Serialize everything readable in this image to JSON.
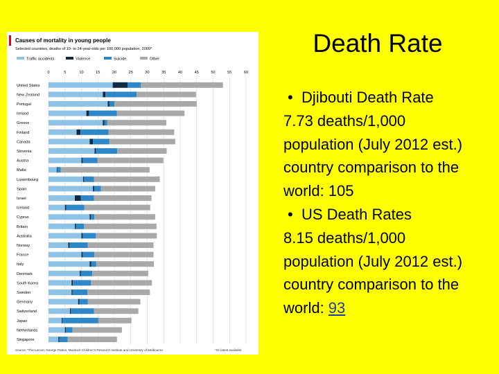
{
  "slide": {
    "title": "Death Rate",
    "djibouti_heading": "Djibouti Death Rate",
    "djibouti_rate": "7.73 deaths/1,000",
    "djibouti_population": "population (July 2012 est.)",
    "djibouti_comparison": "country comparison to the",
    "djibouti_rank_prefix": "world: ",
    "djibouti_rank": "105",
    "us_heading": "US Death Rates",
    "us_rate": "8.15 deaths/1,000",
    "us_population": "population (July 2012 est.)",
    "us_comparison": "country comparison to the",
    "us_rank_prefix": "world: ",
    "us_rank": "93",
    "bullet": "•",
    "link_color": "#1f3fa0"
  },
  "chart_data": {
    "type": "bar",
    "orientation": "horizontal",
    "stacked": true,
    "title": "Causes of mortality in young people",
    "subtitle": "Selected countries, deaths of 10- to 24-year-olds per 100,000 population, 2009*",
    "source": "Source: \"The Lancet, George Patton, Murdoch Children's Research Institute and University of Melbourne",
    "footnote": "*Or latest available",
    "xlim": [
      0,
      60
    ],
    "xticks": [
      0,
      5,
      10,
      15,
      20,
      25,
      30,
      35,
      40,
      45,
      50,
      55,
      60
    ],
    "grid": true,
    "legend_position": "top",
    "categories": [
      "United States",
      "New Zealand",
      "Portugal",
      "Ireland",
      "Greece",
      "Finland",
      "Canada",
      "Slovenia",
      "Austria",
      "Malta",
      "Luxembourg",
      "Spain",
      "Israel",
      "Iceland",
      "Cyprus",
      "Britain",
      "Australia",
      "Norway",
      "France",
      "Italy",
      "Denmark",
      "South Korea",
      "Sweden",
      "Germany",
      "Switzerland",
      "Japan",
      "Netherlands",
      "Singapore"
    ],
    "series": [
      {
        "name": "Traffic accidents",
        "color": "#8fc3e6",
        "values": [
          19.5,
          16.5,
          18,
          11.5,
          16.5,
          8.5,
          12.5,
          14,
          10,
          2.5,
          10.5,
          13.5,
          8,
          5,
          12.5,
          8,
          10,
          6,
          10,
          12.5,
          9.5,
          7,
          7,
          9,
          6.5,
          4,
          5,
          3
        ]
      },
      {
        "name": "Violence",
        "color": "#0f2a44",
        "values": [
          4.5,
          0.8,
          0.5,
          0.8,
          0.5,
          1.2,
          1,
          0.4,
          0.4,
          0.2,
          0.3,
          0.4,
          1.8,
          0.4,
          0.4,
          0.3,
          0.4,
          0.4,
          0.4,
          0.5,
          0.3,
          0.4,
          0.3,
          0.4,
          0.3,
          0.2,
          0.3,
          0.3
        ]
      },
      {
        "name": "Suicide",
        "color": "#2d87c8",
        "values": [
          4,
          9.5,
          1.5,
          8.5,
          0.8,
          8.5,
          5,
          6.5,
          4.5,
          1,
          3,
          2,
          4,
          5.5,
          1,
          2.5,
          4,
          5.5,
          3.5,
          1.5,
          3.5,
          5.5,
          4.5,
          2.5,
          7,
          11,
          2,
          2.5
        ]
      },
      {
        "name": "Other",
        "color": "#a9a9a9",
        "values": [
          25,
          18,
          25,
          20.5,
          18,
          20,
          20,
          15,
          20,
          27,
          20,
          16.5,
          17.5,
          20,
          18.5,
          22,
          18.5,
          20,
          18,
          17.5,
          17,
          18.5,
          19,
          16,
          13.5,
          10,
          15,
          15
        ]
      }
    ]
  }
}
